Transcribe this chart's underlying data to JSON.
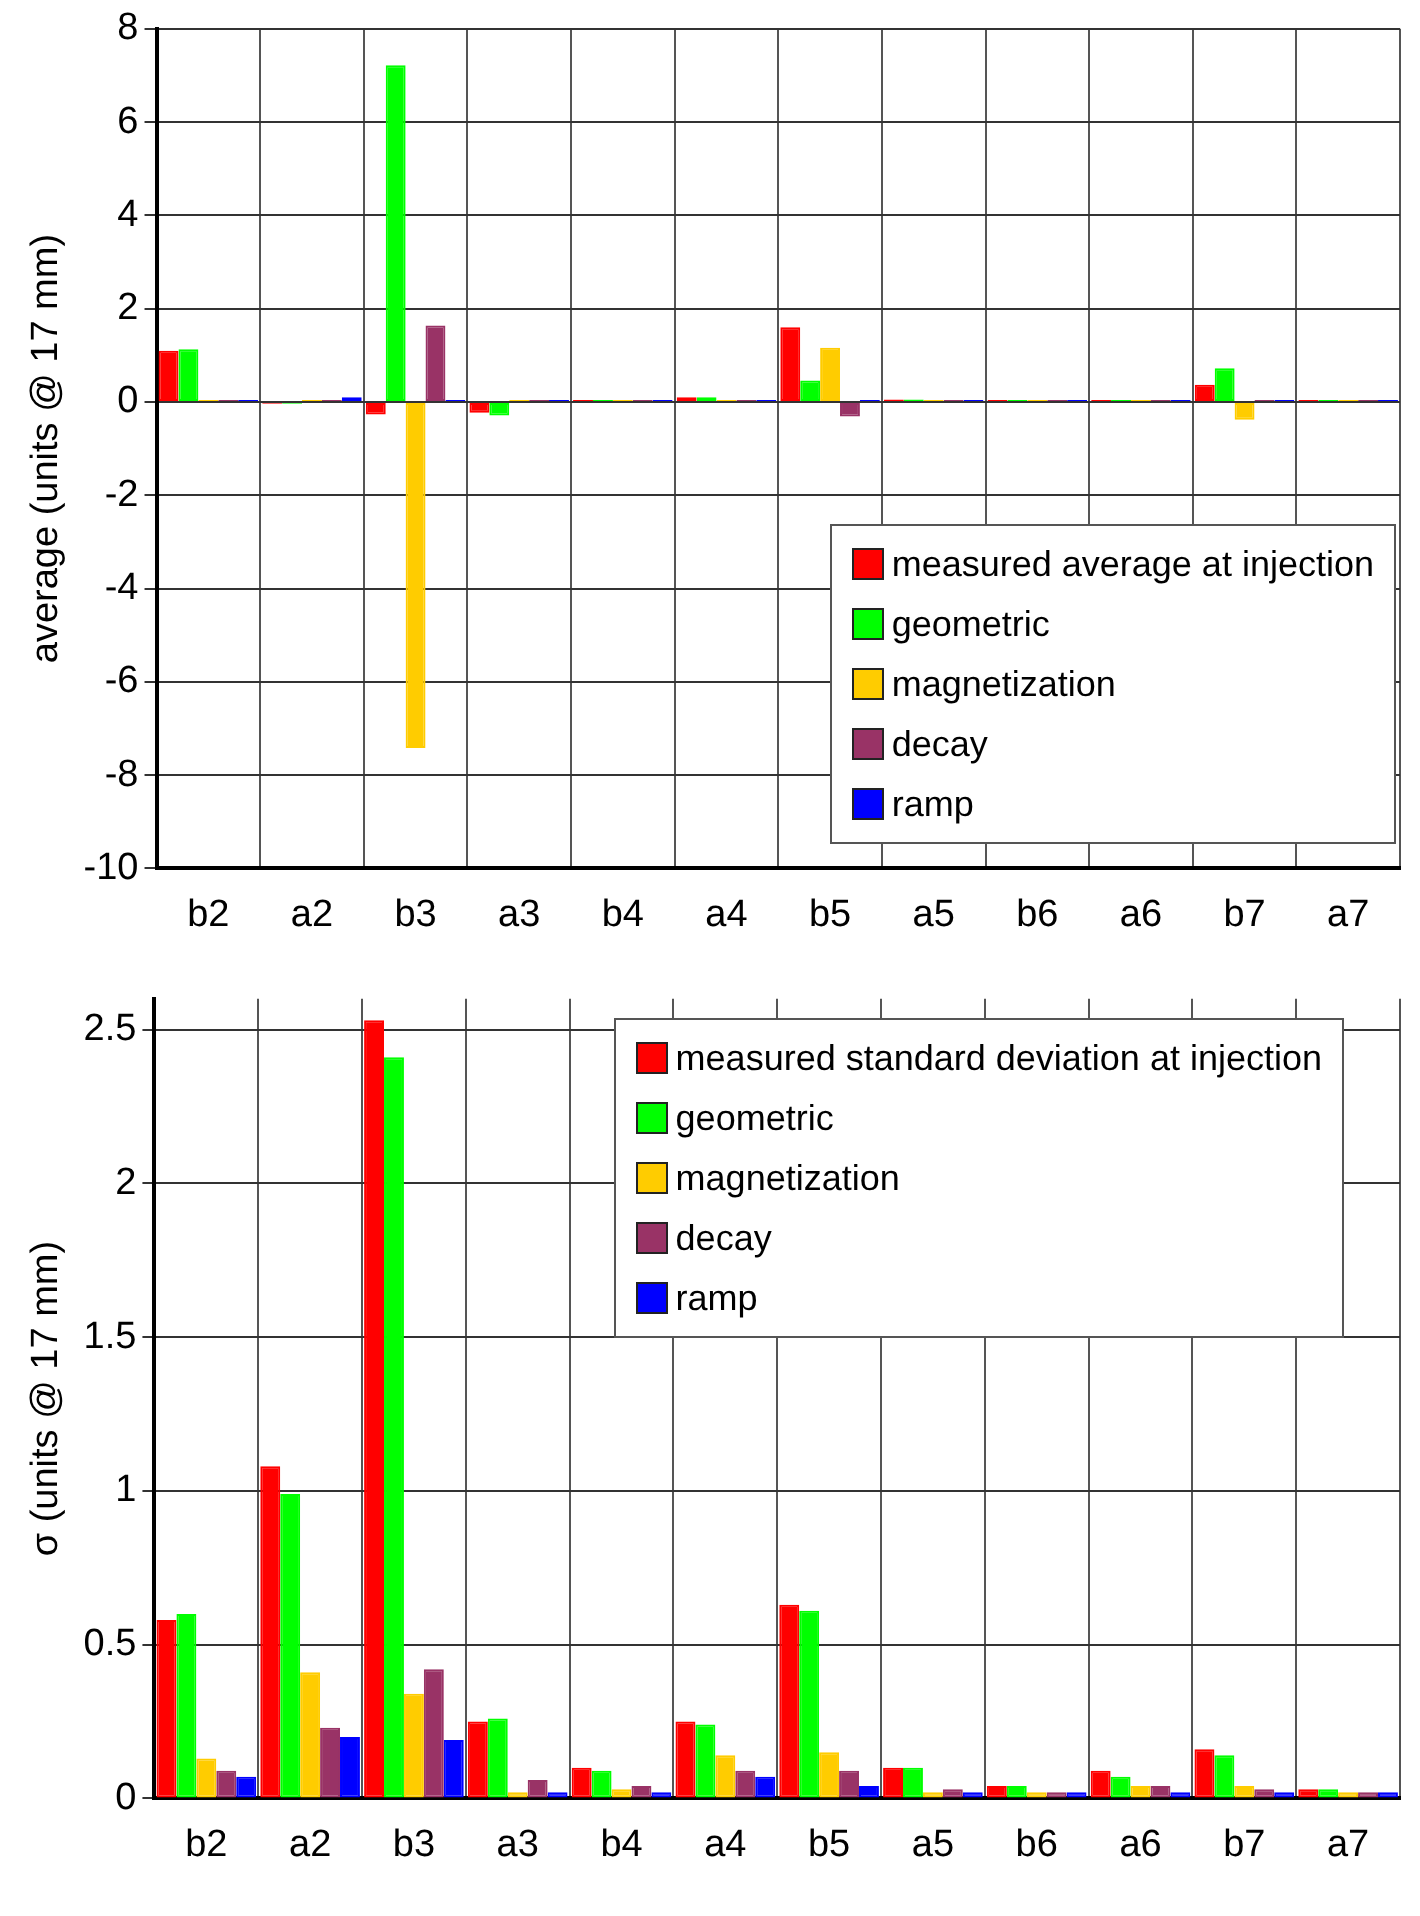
{
  "chart_data": [
    {
      "type": "bar",
      "ylabel": "average (units @ 17 mm)",
      "categories": [
        "b2",
        "a2",
        "b3",
        "a3",
        "b4",
        "a4",
        "b5",
        "a5",
        "b6",
        "a6",
        "b7",
        "a7"
      ],
      "series": [
        {
          "name": "measured average at injection",
          "color": "#ff0000",
          "values": [
            1.1,
            -0.04,
            -0.27,
            -0.23,
            0.04,
            0.1,
            1.6,
            0.05,
            0.04,
            0.04,
            0.37,
            0.04
          ]
        },
        {
          "name": "geometric",
          "color": "#00ff00",
          "values": [
            1.13,
            -0.04,
            7.22,
            -0.29,
            0.04,
            0.1,
            0.46,
            0.05,
            0.04,
            0.04,
            0.72,
            0.04
          ]
        },
        {
          "name": "magnetization",
          "color": "#ffcc00",
          "values": [
            0.04,
            0.04,
            -7.42,
            0.04,
            0.04,
            0.04,
            1.16,
            0.04,
            0.04,
            0.04,
            -0.38,
            0.04
          ]
        },
        {
          "name": "decay",
          "color": "#993366",
          "values": [
            0.04,
            0.04,
            1.64,
            0.04,
            0.04,
            0.04,
            -0.31,
            0.04,
            0.04,
            0.04,
            0.04,
            0.04
          ]
        },
        {
          "name": "ramp",
          "color": "#0000ff",
          "values": [
            0.04,
            0.1,
            0.04,
            0.04,
            0.04,
            0.04,
            0.04,
            0.04,
            0.04,
            0.04,
            0.04,
            0.04
          ]
        }
      ],
      "ylim": [
        -10,
        8
      ],
      "yticks": [
        -10,
        -8,
        -6,
        -4,
        -2,
        0,
        2,
        4,
        6,
        8
      ],
      "grid": true,
      "legend": "bottom right"
    },
    {
      "type": "bar",
      "ylabel": "σ (units @ 17 mm)",
      "categories": [
        "b2",
        "a2",
        "b3",
        "a3",
        "b4",
        "a4",
        "b5",
        "a5",
        "b6",
        "a6",
        "b7",
        "a7"
      ],
      "series": [
        {
          "name": "measured standard deviation at injection",
          "color": "#ff0000",
          "values": [
            0.58,
            1.08,
            2.53,
            0.25,
            0.1,
            0.25,
            0.63,
            0.1,
            0.04,
            0.09,
            0.16,
            0.03
          ]
        },
        {
          "name": "geometric",
          "color": "#00ff00",
          "values": [
            0.6,
            0.99,
            2.41,
            0.26,
            0.09,
            0.24,
            0.61,
            0.1,
            0.04,
            0.07,
            0.14,
            0.03
          ]
        },
        {
          "name": "magnetization",
          "color": "#ffcc00",
          "values": [
            0.13,
            0.41,
            0.34,
            0.02,
            0.03,
            0.14,
            0.15,
            0.02,
            0.02,
            0.04,
            0.04,
            0.02
          ]
        },
        {
          "name": "decay",
          "color": "#993366",
          "values": [
            0.09,
            0.23,
            0.42,
            0.06,
            0.04,
            0.09,
            0.09,
            0.03,
            0.02,
            0.04,
            0.03,
            0.02
          ]
        },
        {
          "name": "ramp",
          "color": "#0000ff",
          "values": [
            0.07,
            0.2,
            0.19,
            0.02,
            0.02,
            0.07,
            0.04,
            0.02,
            0.02,
            0.02,
            0.02,
            0.02
          ]
        }
      ],
      "ylim": [
        0,
        2.6
      ],
      "yticks": [
        0,
        0.5,
        1,
        1.5,
        2,
        2.5
      ],
      "grid": true,
      "legend": "top right"
    }
  ]
}
